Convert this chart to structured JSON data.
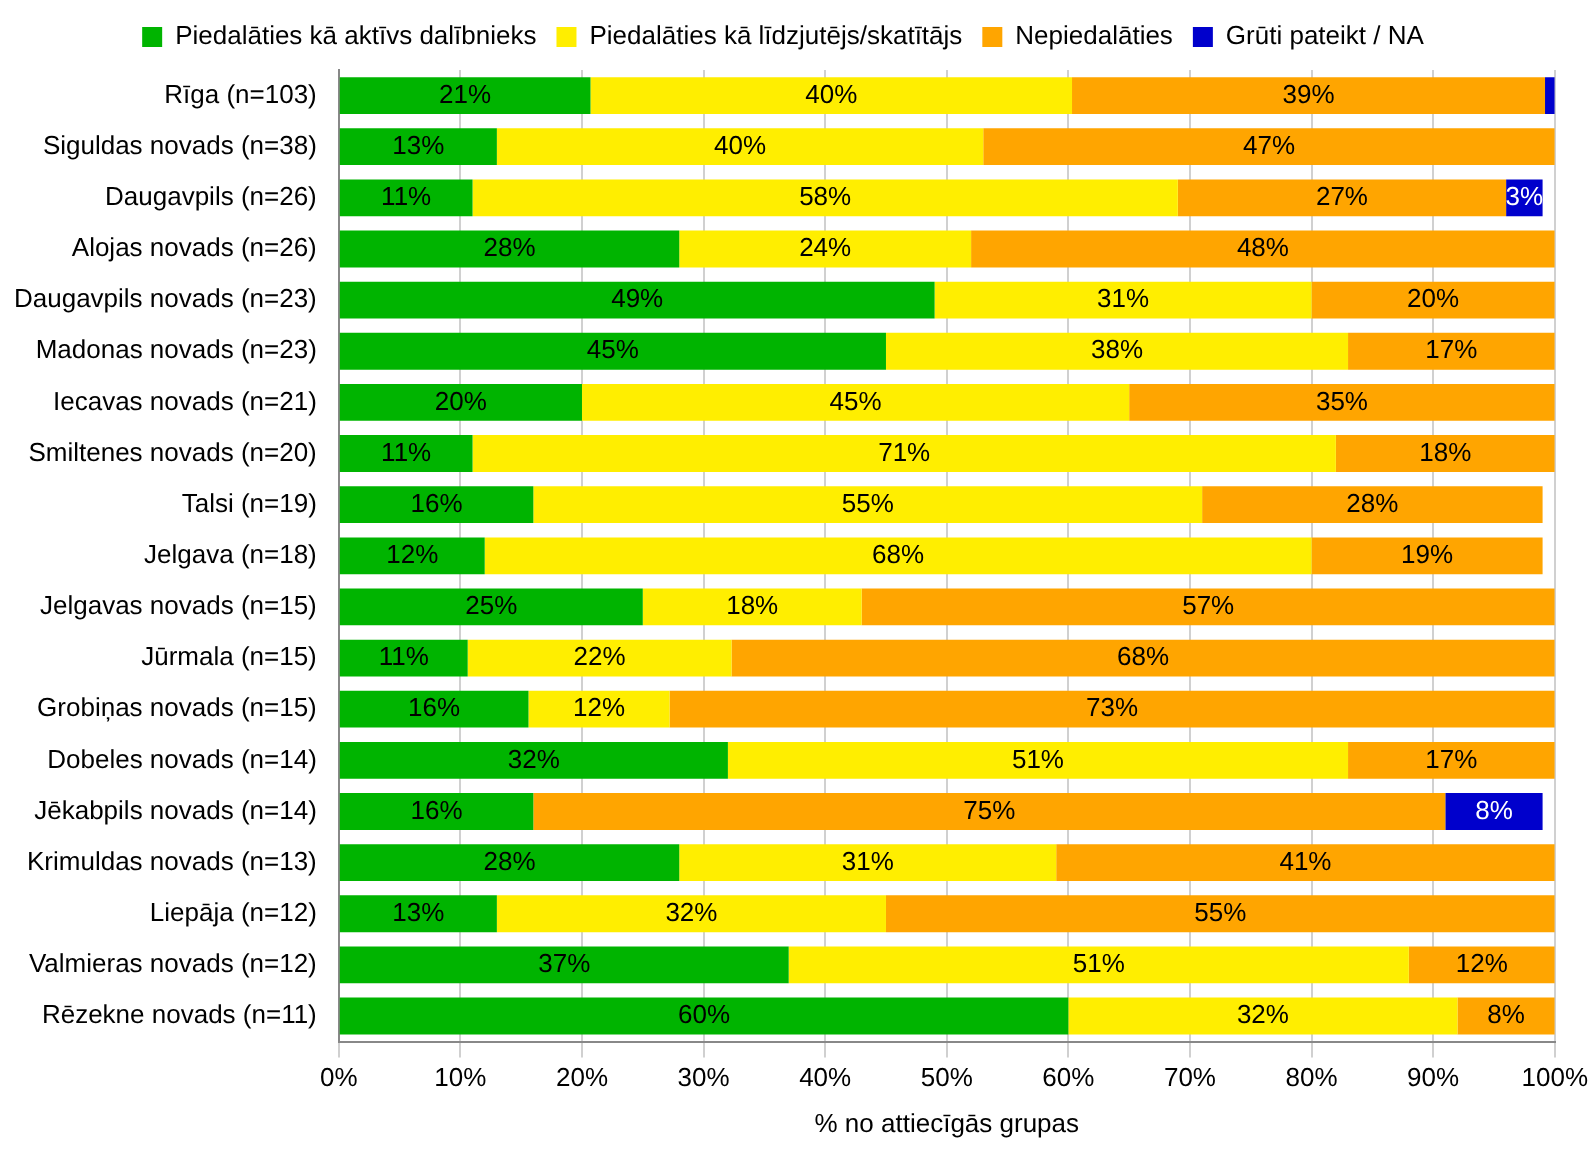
{
  "chart_data": {
    "type": "bar",
    "orientation": "horizontal",
    "stacked": true,
    "xlabel": "% no attiecīgās grupas",
    "categories": [
      "Rīga (n=103)",
      "Siguldas novads (n=38)",
      "Daugavpils (n=26)",
      "Alojas novads (n=26)",
      "Daugavpils novads (n=23)",
      "Madonas novads (n=23)",
      "Iecavas novads (n=21)",
      "Smiltenes novads (n=20)",
      "Talsi (n=19)",
      "Jelgava (n=18)",
      "Jelgavas novads (n=15)",
      "Jūrmala (n=15)",
      "Grobiņas novads (n=15)",
      "Dobeles novads (n=14)",
      "Jēkabpils novads (n=14)",
      "Krimuldas novads (n=13)",
      "Liepāja (n=12)",
      "Valmieras novads (n=12)",
      "Rēzekne novads (n=11)"
    ],
    "series": [
      {
        "name": "Piedalāties kā aktīvs dalībnieks",
        "color": "#00b400",
        "values": [
          20.7,
          13,
          11,
          28,
          49,
          45,
          20,
          11,
          16,
          12,
          25,
          10.6,
          15.6,
          32,
          16,
          28,
          13,
          37,
          60
        ],
        "value_labels": [
          "21%",
          "13%",
          "11%",
          "28%",
          "49%",
          "45%",
          "20%",
          "11%",
          "16%",
          "12%",
          "25%",
          "11%",
          "16%",
          "32%",
          "16%",
          "28%",
          "13%",
          "37%",
          "60%"
        ]
      },
      {
        "name": "Piedalāties kā līdzjutējs/skatītājs",
        "color": "#ffee00",
        "values": [
          39.6,
          40,
          58,
          24,
          31,
          38,
          45,
          71,
          55,
          68,
          18,
          21.7,
          11.6,
          51,
          null,
          31,
          32,
          51,
          32
        ],
        "value_labels": [
          "40%",
          "40%",
          "58%",
          "24%",
          "31%",
          "38%",
          "45%",
          "71%",
          "55%",
          "68%",
          "18%",
          "22%",
          "12%",
          "51%",
          null,
          "31%",
          "32%",
          "51%",
          "32%"
        ]
      },
      {
        "name": "Nepiedalāties",
        "color": "#ffa500",
        "values": [
          38.9,
          47,
          27,
          48,
          20,
          17,
          35,
          18,
          28,
          19,
          57,
          67.7,
          72.8,
          17,
          75,
          41,
          55,
          12,
          8
        ],
        "value_labels": [
          "39%",
          "47%",
          "27%",
          "48%",
          "20%",
          "17%",
          "35%",
          "18%",
          "28%",
          "19%",
          "57%",
          "68%",
          "73%",
          "17%",
          "75%",
          "41%",
          "55%",
          "12%",
          "8%"
        ]
      },
      {
        "name": "Grūti pateikt / NA",
        "color": "#0000cc",
        "values": [
          0.8,
          null,
          3,
          null,
          null,
          null,
          null,
          null,
          null,
          null,
          null,
          null,
          null,
          null,
          8,
          null,
          null,
          null,
          null
        ],
        "value_labels": [
          null,
          null,
          "3%",
          null,
          null,
          null,
          null,
          null,
          null,
          null,
          null,
          null,
          null,
          null,
          "8%",
          null,
          null,
          null,
          null
        ]
      }
    ],
    "xlim": [
      0,
      100
    ],
    "xticks": [
      {
        "value": 0,
        "label": "0%"
      },
      {
        "value": 10,
        "label": "10%"
      },
      {
        "value": 20,
        "label": "20%"
      },
      {
        "value": 30,
        "label": "30%"
      },
      {
        "value": 40,
        "label": "40%"
      },
      {
        "value": 50,
        "label": "50%"
      },
      {
        "value": 60,
        "label": "60%"
      },
      {
        "value": 70,
        "label": "70%"
      },
      {
        "value": 80,
        "label": "80%"
      },
      {
        "value": 90,
        "label": "90%"
      },
      {
        "value": 100,
        "label": "100%"
      }
    ],
    "grid": "x",
    "legend": "top"
  }
}
